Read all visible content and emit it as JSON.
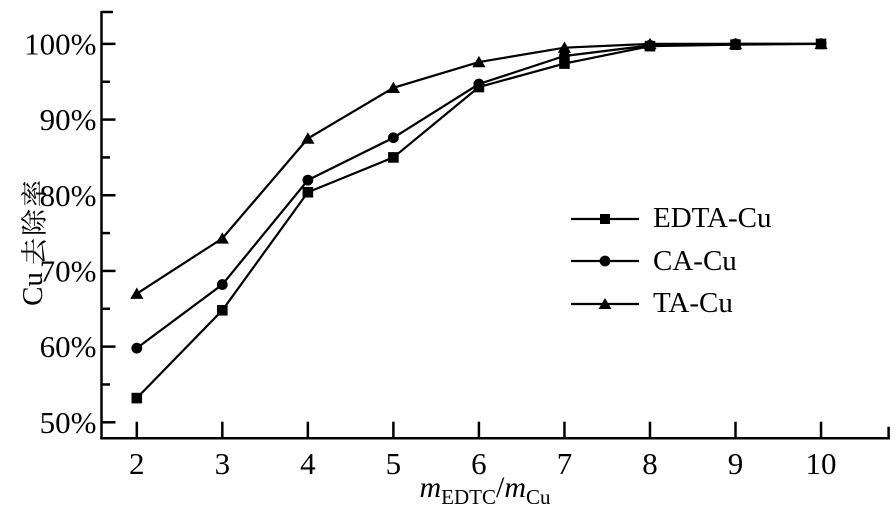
{
  "figure": {
    "background_color": "#ffffff",
    "ink_color": "#000000"
  },
  "chart_data": {
    "type": "line",
    "title": "",
    "xlabel": "m_EDTC/m_Cu",
    "xlabel_parts": [
      {
        "text": "m",
        "style": "italic"
      },
      {
        "text": "EDTC",
        "style": "subscript"
      },
      {
        "text": "/",
        "style": "normal"
      },
      {
        "text": "m",
        "style": "italic"
      },
      {
        "text": "Cu",
        "style": "subscript"
      }
    ],
    "ylabel": "Cu 去除率",
    "x": [
      2,
      3,
      4,
      5,
      6,
      7,
      8,
      9,
      10
    ],
    "series": [
      {
        "name": "EDTA-Cu",
        "marker": "square",
        "values": [
          53.2,
          64.8,
          80.4,
          85.0,
          94.3,
          97.4,
          99.7,
          99.9,
          100
        ]
      },
      {
        "name": "CA-Cu",
        "marker": "circle",
        "values": [
          59.8,
          68.2,
          82.0,
          87.6,
          94.7,
          98.4,
          99.8,
          100,
          100
        ]
      },
      {
        "name": "TA-Cu",
        "marker": "triangle",
        "values": [
          67.0,
          74.3,
          87.5,
          94.2,
          97.6,
          99.5,
          100,
          100,
          100
        ]
      }
    ],
    "x_ticks": {
      "values": [
        2,
        3,
        4,
        5,
        6,
        7,
        8,
        9,
        10
      ],
      "labels": [
        "2",
        "3",
        "4",
        "5",
        "6",
        "7",
        "8",
        "9",
        "10"
      ]
    },
    "y_ticks": {
      "values": [
        50,
        60,
        70,
        80,
        90,
        100
      ],
      "labels": [
        "50%",
        "60%",
        "70%",
        "80%",
        "90%",
        "100%"
      ]
    },
    "y_minor_ticks": [
      55,
      65,
      75,
      85,
      95
    ],
    "xlim": [
      1.59,
      10.79
    ],
    "ylim": [
      47.9,
      104.3
    ],
    "grid": false,
    "legend_position": "center-right",
    "line_color": "#000000",
    "marker_color": "#000000"
  }
}
